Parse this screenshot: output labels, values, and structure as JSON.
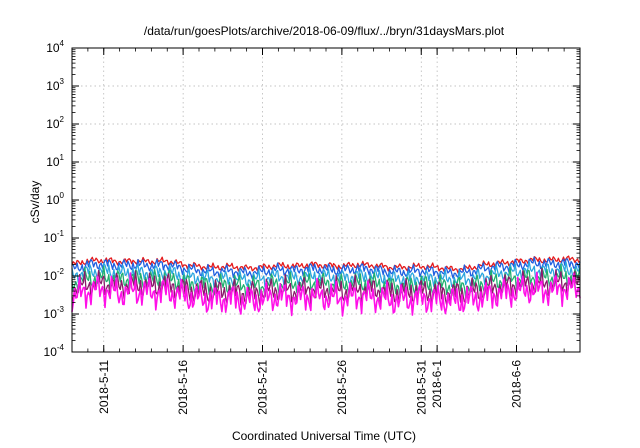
{
  "chart_data": {
    "type": "line",
    "title": "/data/run/goesPlots/archive/2018-06-09/flux/../bryn/31daysMars.plot",
    "xlabel": "Coordinated Universal Time (UTC)",
    "ylabel": "cSv/day",
    "yscale": "log",
    "ylim": [
      0.0001,
      10000
    ],
    "y_ticks": [
      {
        "base": "10",
        "exp": "-4",
        "value": 0.0001
      },
      {
        "base": "10",
        "exp": "-3",
        "value": 0.001
      },
      {
        "base": "10",
        "exp": "-2",
        "value": 0.01
      },
      {
        "base": "10",
        "exp": "-1",
        "value": 0.1
      },
      {
        "base": "10",
        "exp": "0",
        "value": 1
      },
      {
        "base": "10",
        "exp": "1",
        "value": 10
      },
      {
        "base": "10",
        "exp": "2",
        "value": 100
      },
      {
        "base": "10",
        "exp": "3",
        "value": 1000
      },
      {
        "base": "10",
        "exp": "4",
        "value": 10000
      }
    ],
    "xlim": [
      "2018-05-09",
      "2018-06-10"
    ],
    "x_ticks": [
      {
        "label": "2018-5-11",
        "date": "2018-05-11"
      },
      {
        "label": "2018-5-16",
        "date": "2018-05-16"
      },
      {
        "label": "2018-5-21",
        "date": "2018-05-21"
      },
      {
        "label": "2018-5-26",
        "date": "2018-05-26"
      },
      {
        "label": "2018-5-31",
        "date": "2018-05-31"
      },
      {
        "label": "2018-6-1",
        "date": "2018-06-01"
      },
      {
        "label": "2018-6-6",
        "date": "2018-06-06"
      }
    ],
    "grid": true,
    "legend": "none",
    "x": [
      "2018-05-09",
      "2018-05-10",
      "2018-05-11",
      "2018-05-12",
      "2018-05-13",
      "2018-05-14",
      "2018-05-15",
      "2018-05-16",
      "2018-05-17",
      "2018-05-18",
      "2018-05-19",
      "2018-05-20",
      "2018-05-21",
      "2018-05-22",
      "2018-05-23",
      "2018-05-24",
      "2018-05-25",
      "2018-05-26",
      "2018-05-27",
      "2018-05-28",
      "2018-05-29",
      "2018-05-30",
      "2018-05-31",
      "2018-06-01",
      "2018-06-02",
      "2018-06-03",
      "2018-06-04",
      "2018-06-05",
      "2018-06-06",
      "2018-06-07",
      "2018-06-08",
      "2018-06-09",
      "2018-06-10"
    ],
    "series": [
      {
        "color": "#e41a1c",
        "values": [
          0.02,
          0.025,
          0.026,
          0.024,
          0.025,
          0.024,
          0.025,
          0.02,
          0.018,
          0.017,
          0.018,
          0.016,
          0.017,
          0.019,
          0.018,
          0.02,
          0.019,
          0.018,
          0.02,
          0.019,
          0.017,
          0.017,
          0.018,
          0.017,
          0.015,
          0.016,
          0.02,
          0.022,
          0.024,
          0.027,
          0.026,
          0.028,
          0.027
        ]
      },
      {
        "color": "#1f5fe0",
        "values": [
          0.015,
          0.02,
          0.021,
          0.019,
          0.02,
          0.019,
          0.02,
          0.016,
          0.014,
          0.013,
          0.014,
          0.012,
          0.013,
          0.015,
          0.014,
          0.016,
          0.015,
          0.014,
          0.016,
          0.015,
          0.013,
          0.013,
          0.014,
          0.013,
          0.012,
          0.013,
          0.016,
          0.018,
          0.019,
          0.022,
          0.021,
          0.022,
          0.021
        ]
      },
      {
        "color": "#2aa6e0",
        "values": [
          0.01,
          0.013,
          0.014,
          0.012,
          0.013,
          0.012,
          0.013,
          0.01,
          0.009,
          0.0085,
          0.009,
          0.008,
          0.0085,
          0.01,
          0.009,
          0.01,
          0.01,
          0.009,
          0.01,
          0.01,
          0.0085,
          0.0085,
          0.009,
          0.0085,
          0.008,
          0.0085,
          0.01,
          0.012,
          0.013,
          0.014,
          0.014,
          0.015,
          0.014
        ]
      },
      {
        "color": "#20b070",
        "values": [
          0.0065,
          0.0085,
          0.009,
          0.008,
          0.0085,
          0.008,
          0.0085,
          0.0065,
          0.006,
          0.0055,
          0.006,
          0.0052,
          0.0055,
          0.0065,
          0.006,
          0.0068,
          0.0065,
          0.006,
          0.0065,
          0.0065,
          0.0055,
          0.0055,
          0.006,
          0.0055,
          0.0052,
          0.0055,
          0.0065,
          0.0075,
          0.0085,
          0.009,
          0.009,
          0.0095,
          0.009
        ]
      },
      {
        "color": "#8b1a6b",
        "values": [
          0.0045,
          0.006,
          0.0065,
          0.0055,
          0.006,
          0.0055,
          0.006,
          0.0045,
          0.004,
          0.0038,
          0.004,
          0.0035,
          0.0038,
          0.0045,
          0.004,
          0.0046,
          0.0045,
          0.004,
          0.0045,
          0.0045,
          0.0038,
          0.0038,
          0.004,
          0.0038,
          0.0035,
          0.0038,
          0.0045,
          0.0052,
          0.006,
          0.0065,
          0.0062,
          0.0068,
          0.0065
        ]
      },
      {
        "color": "#ff10e8",
        "values": [
          0.0028,
          0.004,
          0.0045,
          0.0035,
          0.0042,
          0.0036,
          0.004,
          0.003,
          0.0026,
          0.0024,
          0.0026,
          0.0022,
          0.0024,
          0.003,
          0.0026,
          0.003,
          0.0028,
          0.0025,
          0.003,
          0.0028,
          0.0023,
          0.0024,
          0.0026,
          0.0024,
          0.0022,
          0.0024,
          0.003,
          0.0035,
          0.004,
          0.0045,
          0.0042,
          0.0048,
          0.0045
        ]
      }
    ]
  }
}
